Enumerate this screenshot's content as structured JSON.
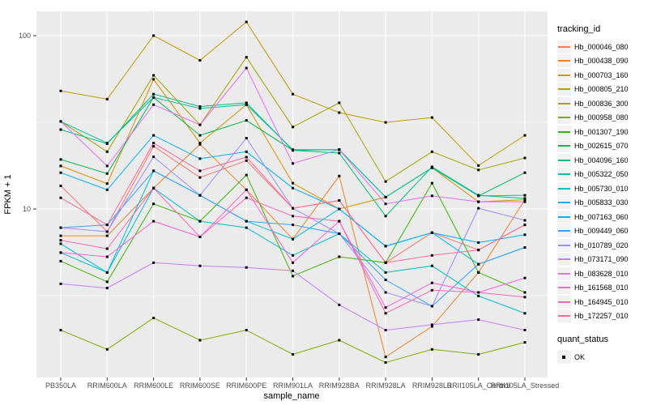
{
  "figure": {
    "y_axis": {
      "label": "FPKM + 1",
      "tick_top": "100",
      "tick_bottom": "10"
    },
    "x_axis": {
      "label": "sample_name"
    },
    "legend": {
      "tracking_title": "tracking_id",
      "quant_title": "quant_status",
      "quant_ok_label": "OK"
    },
    "colors": {
      "panel_background": "#EBEBEB",
      "gridline": "#FFFFFF",
      "axis_text": "#4D4D4D",
      "axis_title": "#000000",
      "point_marker": "#000000",
      "legend_key_background": "#F2F2F2"
    }
  },
  "chart_data": {
    "type": "line",
    "title": "",
    "xlabel": "sample_name",
    "ylabel": "FPKM + 1",
    "y_scale": "log10",
    "ylim": [
      1.07,
      138
    ],
    "yticks": [
      10,
      100
    ],
    "y_minor_gridlines": [
      3.162,
      31.62
    ],
    "grid": true,
    "legend_position": "right",
    "point_marker": "black-square",
    "quant_status": "OK",
    "categories": [
      "PB350LA",
      "RRIM600LA",
      "RRIM600LE",
      "RRIM600SE",
      "RRIM600PE",
      "RRIM901LA",
      "RRIM928BA",
      "RRIM928LA",
      "RRIM928LB",
      "RRII105LA_Control",
      "RRII105LA_Stressed"
    ],
    "series": [
      {
        "name": "Hb_000046_080",
        "color": "#F8766D",
        "values": [
          13.6,
          7.4,
          23,
          15.2,
          19,
          10.1,
          11.2,
          4.9,
          7.3,
          5.8,
          8.1
        ]
      },
      {
        "name": "Hb_000438_090",
        "color": "#EA8331",
        "values": [
          7.0,
          7.0,
          13.2,
          23.6,
          12.9,
          6.7,
          15.5,
          1.4,
          2.1,
          4.3,
          11.3
        ]
      },
      {
        "name": "Hb_000703_160",
        "color": "#D89000",
        "values": [
          17.7,
          14.0,
          56,
          24,
          40,
          14.1,
          10.0,
          11.7,
          17.3,
          11.0,
          11.3
        ]
      },
      {
        "name": "Hb_000805_210",
        "color": "#C09B00",
        "values": [
          48,
          43,
          100,
          72,
          120,
          46,
          36,
          31.6,
          33.7,
          17.8,
          26.6
        ]
      },
      {
        "name": "Hb_000836_300",
        "color": "#A3A500",
        "values": [
          32,
          21.4,
          59,
          30.6,
          75,
          29.7,
          41,
          14.4,
          21.4,
          16.8,
          19.7
        ]
      },
      {
        "name": "Hb_000958_080",
        "color": "#7CAE00",
        "values": [
          2.0,
          1.55,
          2.35,
          1.75,
          2.0,
          1.45,
          1.75,
          1.3,
          1.55,
          1.45,
          1.7
        ]
      },
      {
        "name": "Hb_001307_190",
        "color": "#39B600",
        "values": [
          5.0,
          3.8,
          10.7,
          8.5,
          15.7,
          4.1,
          5.3,
          4.9,
          14.1,
          4.3,
          3.3
        ]
      },
      {
        "name": "Hb_002615_070",
        "color": "#00BB4E",
        "values": [
          19.3,
          16.0,
          44,
          26.6,
          32.4,
          21.8,
          22,
          11.7,
          17.3,
          11.9,
          16.2
        ]
      },
      {
        "name": "Hb_004096_160",
        "color": "#00BF7D",
        "values": [
          28.7,
          23.8,
          46,
          39,
          41,
          21.8,
          21,
          9.1,
          17.5,
          12.0,
          11.5
        ]
      },
      {
        "name": "Hb_005322_050",
        "color": "#00C1A3",
        "values": [
          32,
          24,
          44,
          38,
          40,
          22,
          22,
          11.7,
          17.3,
          11.9,
          12.0
        ]
      },
      {
        "name": "Hb_005730_010",
        "color": "#00BFC4",
        "values": [
          5.6,
          4.3,
          13.2,
          8.5,
          7.8,
          5.4,
          7.2,
          4.3,
          4.7,
          3.15,
          2.5
        ]
      },
      {
        "name": "Hb_005833_030",
        "color": "#00BAE0",
        "values": [
          6.3,
          4.3,
          16.6,
          12,
          8.5,
          6.7,
          10,
          6.1,
          7.3,
          4.8,
          6.0
        ]
      },
      {
        "name": "Hb_007163_060",
        "color": "#00B0F6",
        "values": [
          16.2,
          12.9,
          26.6,
          19.5,
          21.4,
          13.2,
          10,
          6.1,
          7.3,
          6.4,
          7.1
        ]
      },
      {
        "name": "Hb_009449_060",
        "color": "#35A2FF",
        "values": [
          7.8,
          8.1,
          16.6,
          12,
          8.5,
          8.1,
          7.2,
          3.9,
          2.75,
          4.8,
          6.0
        ]
      },
      {
        "name": "Hb_010789_020",
        "color": "#9590FF",
        "values": [
          7.8,
          7.4,
          20,
          12,
          25.6,
          10.1,
          7.2,
          3.3,
          2.75,
          10.1,
          8.6
        ]
      },
      {
        "name": "Hb_073171_090",
        "color": "#C77CFF",
        "values": [
          3.7,
          3.5,
          4.9,
          4.7,
          4.6,
          4.4,
          2.8,
          2.0,
          2.15,
          2.3,
          2.0
        ]
      },
      {
        "name": "Hb_083628_010",
        "color": "#E76BF3",
        "values": [
          32,
          17.7,
          40,
          30.6,
          65,
          18.3,
          22,
          10.7,
          11.9,
          11.0,
          11.0
        ]
      },
      {
        "name": "Hb_161568_010",
        "color": "#FA62DB",
        "values": [
          5.6,
          5.3,
          8.5,
          6.9,
          12.9,
          4.9,
          8.5,
          2.7,
          3.75,
          3.3,
          4.0
        ]
      },
      {
        "name": "Hb_164945_010",
        "color": "#FF62BC",
        "values": [
          6.6,
          5.9,
          13.2,
          6.9,
          11.6,
          9.1,
          8.5,
          2.5,
          3.4,
          3.3,
          3.1
        ]
      },
      {
        "name": "Hb_172257_010",
        "color": "#FF6A98",
        "values": [
          11.6,
          8.1,
          24,
          16.6,
          19.9,
          10.1,
          11.2,
          4.9,
          5.4,
          5.8,
          8.1
        ]
      }
    ]
  }
}
